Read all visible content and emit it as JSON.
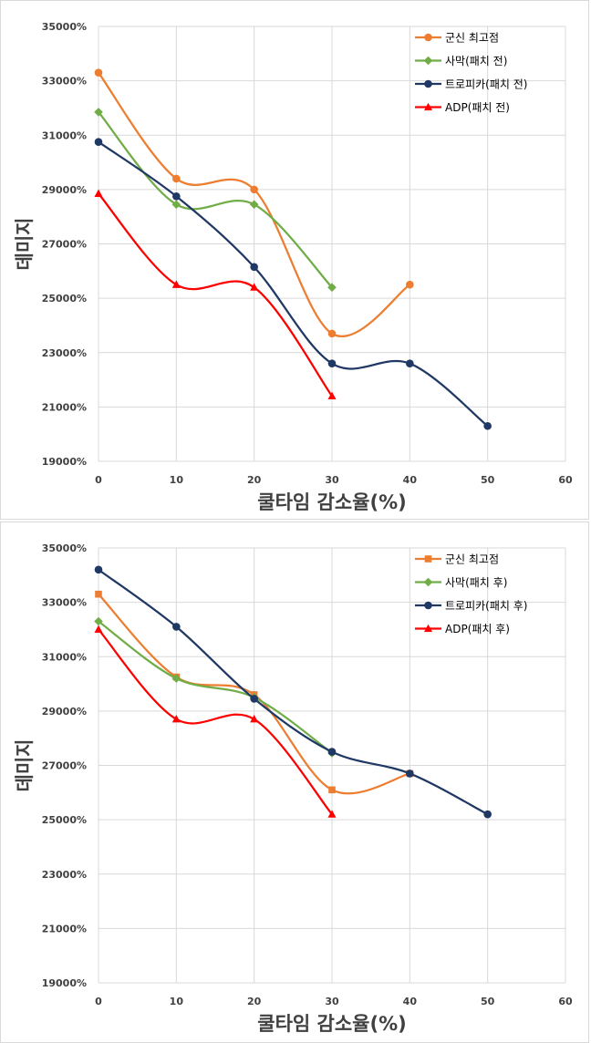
{
  "chart_data": [
    {
      "type": "line",
      "title": "",
      "xlabel": "쿨타임 감소율(%)",
      "ylabel": "데미지",
      "xlim": [
        0,
        60
      ],
      "ylim": [
        19000,
        35000
      ],
      "x_ticks": [
        "0",
        "10",
        "20",
        "30",
        "40",
        "50",
        "60"
      ],
      "y_ticks": [
        "19000%",
        "21000%",
        "23000%",
        "25000%",
        "27000%",
        "29000%",
        "31000%",
        "33000%",
        "35000%"
      ],
      "grid": true,
      "legend_position": "top-right",
      "series": [
        {
          "name": "군신 최고점",
          "color": "#ED7D31",
          "marker": "circle",
          "x": [
            0,
            10,
            20,
            30,
            40
          ],
          "values": [
            33300,
            29400,
            29000,
            23700,
            25500
          ]
        },
        {
          "name": "사막(패치 전)",
          "color": "#70AD47",
          "marker": "diamond",
          "x": [
            0,
            10,
            20,
            30
          ],
          "values": [
            31850,
            28450,
            28450,
            25400
          ]
        },
        {
          "name": "트로피카(패치 전)",
          "color": "#203864",
          "marker": "circle",
          "x": [
            0,
            10,
            20,
            30,
            40,
            50
          ],
          "values": [
            30750,
            28750,
            26150,
            22600,
            22600,
            20300
          ]
        },
        {
          "name": "ADP(패치 전)",
          "color": "#FF0000",
          "marker": "triangle",
          "x": [
            0,
            10,
            20,
            30
          ],
          "values": [
            28850,
            25500,
            25400,
            21400
          ]
        }
      ]
    },
    {
      "type": "line",
      "title": "",
      "xlabel": "쿨타임 감소율(%)",
      "ylabel": "데미지",
      "xlim": [
        0,
        60
      ],
      "ylim": [
        19000,
        35000
      ],
      "x_ticks": [
        "0",
        "10",
        "20",
        "30",
        "40",
        "50",
        "60"
      ],
      "y_ticks": [
        "19000%",
        "21000%",
        "23000%",
        "25000%",
        "27000%",
        "29000%",
        "31000%",
        "33000%",
        "35000%"
      ],
      "grid": true,
      "legend_position": "top-right",
      "series": [
        {
          "name": "군신 최고점",
          "color": "#ED7D31",
          "marker": "square",
          "x": [
            0,
            10,
            20,
            30,
            40
          ],
          "values": [
            33300,
            30250,
            29600,
            26100,
            26700
          ]
        },
        {
          "name": "사막(패치 후)",
          "color": "#70AD47",
          "marker": "diamond",
          "x": [
            0,
            10,
            20,
            30
          ],
          "values": [
            32300,
            30200,
            29500,
            27450
          ]
        },
        {
          "name": "트로피카(패치 후)",
          "color": "#203864",
          "marker": "circle",
          "x": [
            0,
            10,
            20,
            30,
            40,
            50
          ],
          "values": [
            34200,
            32100,
            29450,
            27500,
            26700,
            25200
          ]
        },
        {
          "name": "ADP(패치 후)",
          "color": "#FF0000",
          "marker": "triangle",
          "x": [
            0,
            10,
            20,
            30
          ],
          "values": [
            32000,
            28700,
            28700,
            25200
          ]
        }
      ]
    }
  ]
}
